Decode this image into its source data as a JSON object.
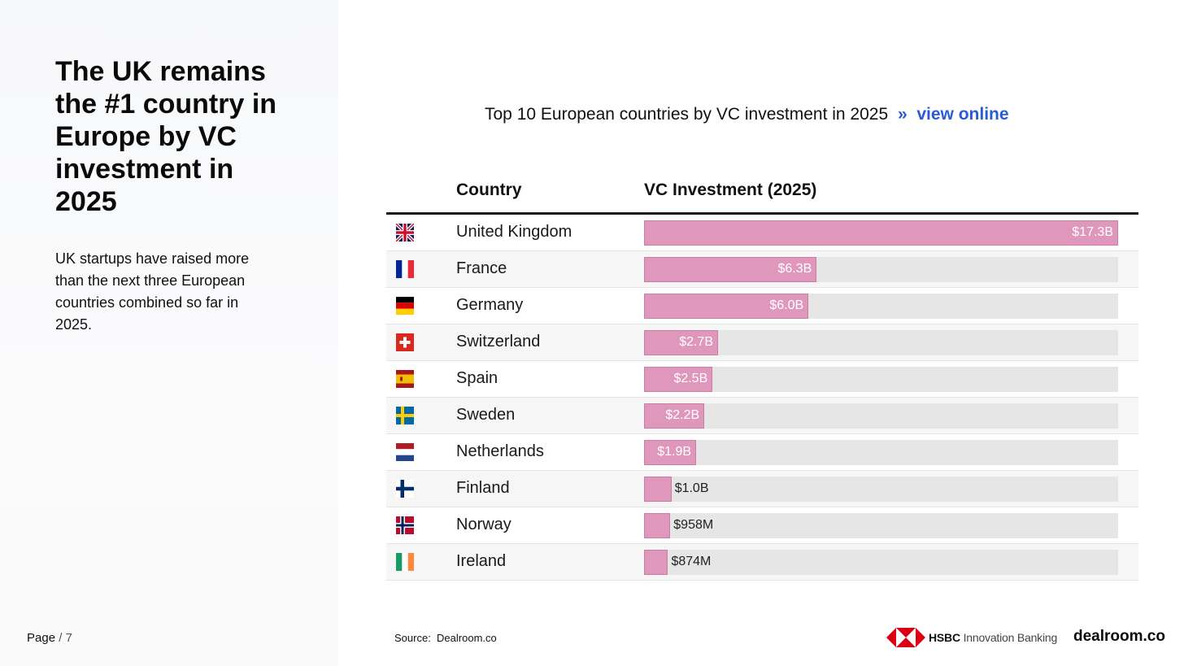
{
  "headline": "The UK remains the #1 country in Europe by VC investment in 2025",
  "subtext": "UK startups have raised more than the next three European countries combined so far in 2025.",
  "page": {
    "label": "Page",
    "separator": "/",
    "number": "7"
  },
  "chart_title": "Top 10 European countries by VC investment in 2025",
  "view_online": {
    "arrow": "»",
    "label": "view online"
  },
  "table": {
    "col_country": "Country",
    "col_value": "VC Investment (2025)"
  },
  "chart_data": {
    "type": "bar",
    "title": "Top 10 European countries by VC investment in 2025",
    "xlabel": "VC Investment (2025)",
    "ylabel": "Country",
    "unit": "USD billions",
    "xlim": [
      0,
      17.3
    ],
    "categories": [
      "United Kingdom",
      "France",
      "Germany",
      "Switzerland",
      "Spain",
      "Sweden",
      "Netherlands",
      "Finland",
      "Norway",
      "Ireland"
    ],
    "values": [
      17.3,
      6.3,
      6.0,
      2.7,
      2.5,
      2.2,
      1.9,
      1.0,
      0.958,
      0.874
    ],
    "labels": [
      "$17.3B",
      "$6.3B",
      "$6.0B",
      "$2.7B",
      "$2.5B",
      "$2.2B",
      "$1.9B",
      "$1.0B",
      "$958M",
      "$874M"
    ],
    "flags": [
      "uk-flag-icon",
      "france-flag-icon",
      "germany-flag-icon",
      "switzerland-flag-icon",
      "spain-flag-icon",
      "sweden-flag-icon",
      "netherlands-flag-icon",
      "finland-flag-icon",
      "norway-flag-icon",
      "ireland-flag-icon"
    ],
    "bar_color": "#df97bb",
    "track_color": "#e6e6e6"
  },
  "source": {
    "label": "Source:",
    "value": "Dealroom.co"
  },
  "logos": {
    "hsbc_bold": "HSBC",
    "hsbc_rest": "Innovation Banking",
    "dealroom": "dealroom.co"
  },
  "colors": {
    "link": "#2a5bd7",
    "hsbc_red": "#db0011"
  }
}
